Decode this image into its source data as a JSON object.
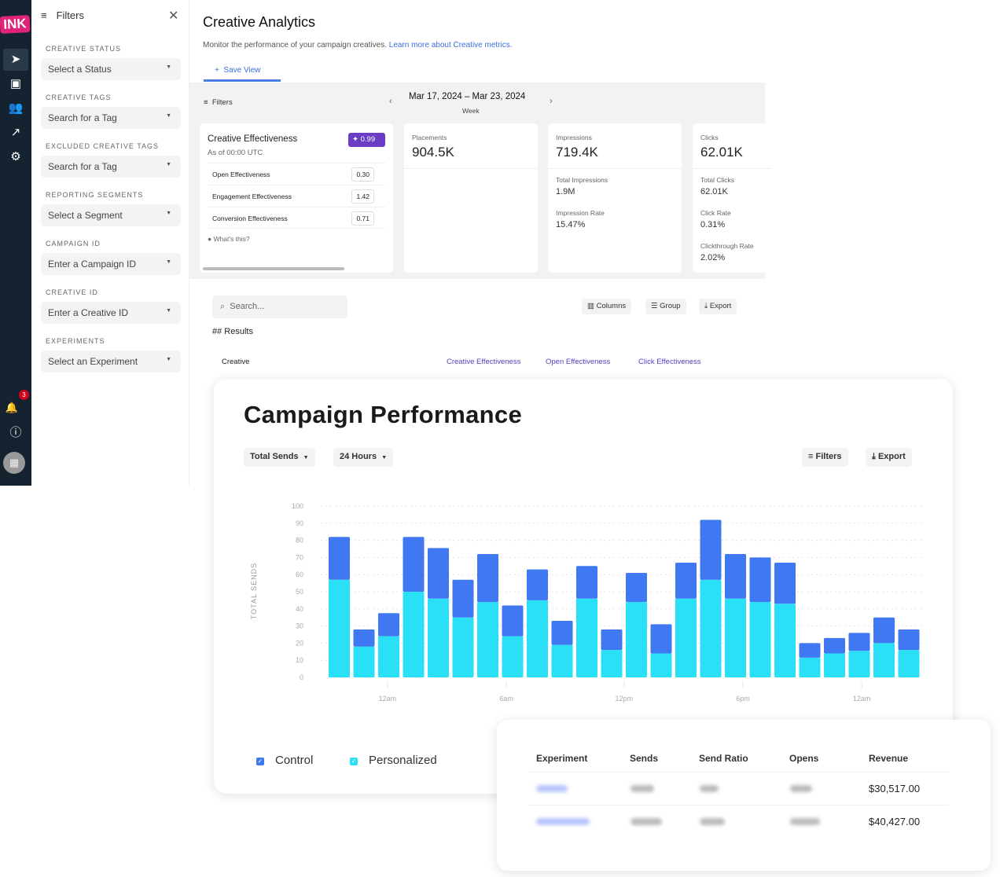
{
  "rail": {
    "logo": "INK",
    "items": [
      "send-icon",
      "gallery-icon",
      "users-icon",
      "trend-icon",
      "gear-icon"
    ],
    "notifications": "3"
  },
  "filters": {
    "title": "Filters",
    "fields": [
      {
        "label": "CREATIVE STATUS",
        "placeholder": "Select a Status"
      },
      {
        "label": "CREATIVE TAGS",
        "placeholder": "Search for a Tag"
      },
      {
        "label": "EXCLUDED CREATIVE TAGS",
        "placeholder": "Search for a Tag"
      },
      {
        "label": "REPORTING SEGMENTS",
        "placeholder": "Select a Segment"
      },
      {
        "label": "CAMPAIGN ID",
        "placeholder": "Enter a Campaign ID"
      },
      {
        "label": "CREATIVE ID",
        "placeholder": "Enter a Creative ID"
      },
      {
        "label": "EXPERIMENTS",
        "placeholder": "Select an Experiment"
      }
    ]
  },
  "header": {
    "title": "Creative Analytics",
    "subtitle": "Monitor the performance of your campaign creatives.",
    "link": "Learn more about Creative metrics.",
    "save_view": "Save View"
  },
  "toolbar": {
    "filters": "Filters",
    "date_range": "Mar 17, 2024 – Mar 23, 2024",
    "period": "Week"
  },
  "effectiveness": {
    "title": "Creative Effectiveness",
    "as_of": "As of 00:00 UTC",
    "score": "0.99",
    "rows": [
      {
        "label": "Open Effectiveness",
        "value": "0.30"
      },
      {
        "label": "Engagement Effectiveness",
        "value": "1.42"
      },
      {
        "label": "Conversion Effectiveness",
        "value": "0.71"
      }
    ],
    "help": "What's this?",
    "accent": "#6a3dc4"
  },
  "metrics": {
    "placements": {
      "label": "Placements",
      "value": "904.5K"
    },
    "impressions": {
      "label": "Impressions",
      "value": "719.4K",
      "total_label": "Total Impressions",
      "total": "1.9M",
      "rate_label": "Impression Rate",
      "rate": "15.47%"
    },
    "clicks": {
      "label": "Clicks",
      "value": "62.01K",
      "total_label": "Total Clicks",
      "total": "62.01K",
      "rate_label": "Click Rate",
      "rate": "0.31%",
      "ctr_label": "Clickthrough Rate",
      "ctr": "2.02%"
    }
  },
  "results": {
    "search_placeholder": "Search...",
    "columns_btn": "Columns",
    "group_btn": "Group",
    "export_btn": "Export",
    "heading": "## Results",
    "cols": [
      "Creative",
      "Creative Effectiveness",
      "Open Effectiveness",
      "Click Effectiveness"
    ]
  },
  "campaign": {
    "title": "Campaign Performance",
    "metric_select": "Total Sends",
    "range_select": "24 Hours",
    "filters_btn": "Filters",
    "export_btn": "Export"
  },
  "chart_data": {
    "type": "bar",
    "stacked": true,
    "ylabel": "TOTAL SENDS",
    "ylim": [
      0,
      100
    ],
    "yticks": [
      0,
      10,
      20,
      30,
      40,
      50,
      60,
      70,
      80,
      90,
      100
    ],
    "xtick_labels": [
      "12am",
      "6am",
      "12pm",
      "6pm",
      "12am"
    ],
    "grid": true,
    "legend": "bottom-left",
    "series": [
      {
        "name": "Personalized",
        "color": "#2ae0f7",
        "values": [
          57,
          18,
          24,
          50,
          46,
          35,
          44,
          24,
          45,
          19,
          46,
          16,
          44,
          14,
          46,
          57,
          46,
          44,
          43,
          11.5,
          14,
          15.5,
          20,
          16
        ]
      },
      {
        "name": "Control",
        "color": "#3f78f0",
        "values": [
          25,
          10,
          13.5,
          32,
          29.5,
          22,
          28,
          18,
          18,
          14,
          19,
          12,
          17,
          17,
          21,
          35,
          26,
          26,
          24,
          8.5,
          9,
          10.5,
          15,
          12
        ]
      }
    ]
  },
  "experiments": {
    "headers": [
      "Experiment",
      "Sends",
      "Send Ratio",
      "Opens",
      "Revenue"
    ],
    "rows": [
      {
        "revenue": "$30,517.00"
      },
      {
        "revenue": "$40,427.00"
      }
    ]
  }
}
